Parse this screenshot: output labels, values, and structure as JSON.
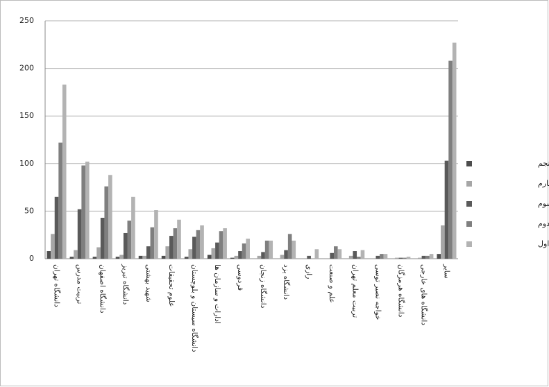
{
  "chart_data": {
    "type": "bar",
    "categories": [
      "دانشگاه تهران",
      "تربیت مدرس",
      "دانشگاه اصفهان",
      "دانشگاه تبریز",
      "شهید بهشتی",
      "علوم تحقیقات",
      "دانشگاه سیستان و بلوچستان",
      "ادارات و سازمان ها",
      "فردوسی",
      "دانشگاه زنجان",
      "دانشگاه یزد",
      "رازی",
      "علم و صنعت",
      "تربیت معلم تهران",
      "خواجه نصیر توسی",
      "دانشگاه هرمزگان",
      "دانشگاه های خارجی",
      "سایر"
    ],
    "series": [
      {
        "name": "نویسنده پنجم",
        "color": "#4d4d4d",
        "values": [
          8,
          2,
          2,
          2,
          3,
          3,
          2,
          4,
          1,
          0,
          0,
          0,
          0,
          0,
          0,
          0,
          0,
          5
        ]
      },
      {
        "name": "نویسنده چهارم",
        "color": "#a6a6a6",
        "values": [
          26,
          9,
          12,
          4,
          3,
          13,
          10,
          11,
          3,
          3,
          4,
          0,
          0,
          3,
          0,
          1,
          1,
          35
        ]
      },
      {
        "name": "نویسنده سوم",
        "color": "#5a5a5a",
        "values": [
          65,
          52,
          43,
          27,
          13,
          24,
          23,
          17,
          8,
          7,
          9,
          3,
          6,
          8,
          3,
          1,
          3,
          103
        ]
      },
      {
        "name": "نویسنده دوم",
        "color": "#7f7f7f",
        "values": [
          122,
          98,
          76,
          40,
          33,
          32,
          30,
          29,
          16,
          19,
          26,
          0,
          13,
          2,
          5,
          1,
          3,
          208
        ]
      },
      {
        "name": "نویسنده اول",
        "color": "#b3b3b3",
        "values": [
          183,
          102,
          88,
          65,
          51,
          41,
          35,
          32,
          21,
          19,
          19,
          10,
          10,
          9,
          5,
          2,
          5,
          227
        ]
      }
    ],
    "ylim": [
      0,
      250
    ],
    "yticks": [
      0,
      50,
      100,
      150,
      200,
      250
    ],
    "grid": true,
    "legend": "right"
  }
}
